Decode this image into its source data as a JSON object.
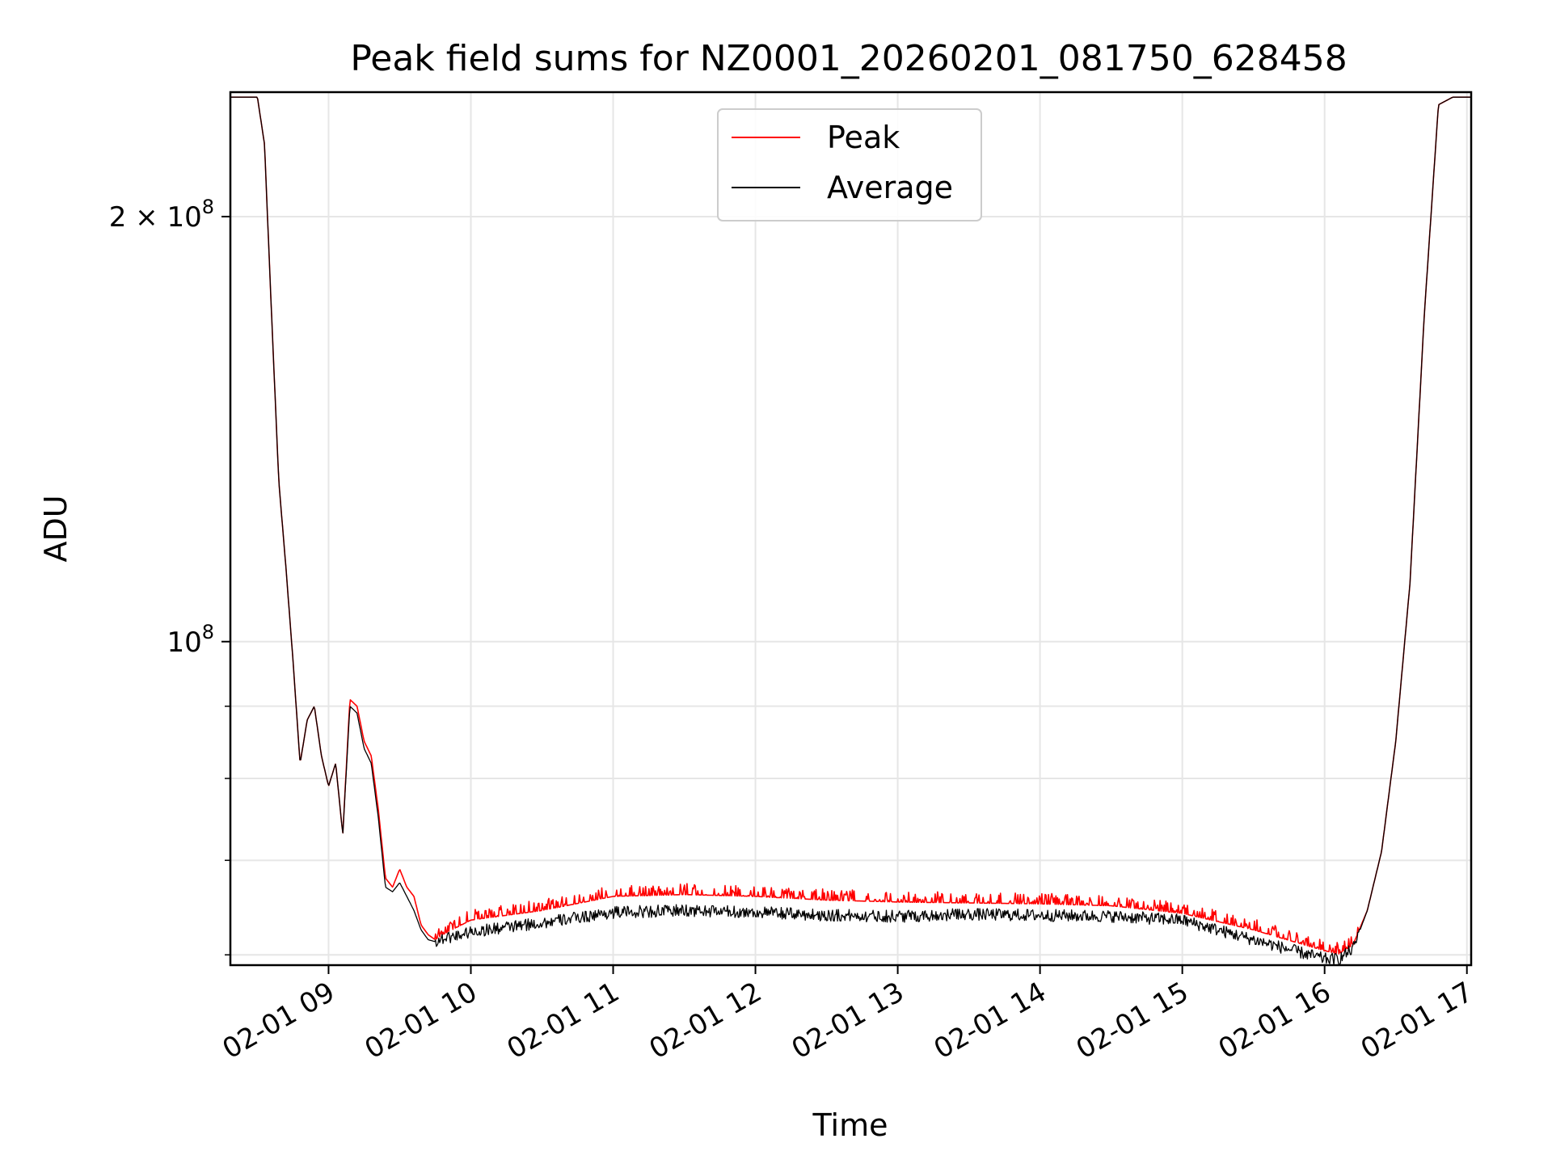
{
  "chart_data": {
    "type": "line",
    "title": "Peak field sums for NZ0001_20260201_081750_628458",
    "xlabel": "Time",
    "ylabel": "ADU",
    "yscale": "log",
    "ylim": [
      59000000,
      245000000
    ],
    "xlim": [
      8.31,
      17.03
    ],
    "grid": true,
    "legend_position": "upper-center",
    "x_ticks": [
      {
        "value": 9,
        "label": "02-01 09"
      },
      {
        "value": 10,
        "label": "02-01 10"
      },
      {
        "value": 11,
        "label": "02-01 11"
      },
      {
        "value": 12,
        "label": "02-01 12"
      },
      {
        "value": 13,
        "label": "02-01 13"
      },
      {
        "value": 14,
        "label": "02-01 14"
      },
      {
        "value": 15,
        "label": "02-01 15"
      },
      {
        "value": 16,
        "label": "02-01 16"
      },
      {
        "value": 17,
        "label": "02-01 17"
      }
    ],
    "y_major_ticks": [
      {
        "value": 100000000,
        "label_base": "10",
        "label_exp": "8",
        "label_prefix": ""
      },
      {
        "value": 200000000,
        "label_base": "10",
        "label_exp": "8",
        "label_prefix": "2 × "
      }
    ],
    "y_minor_ticks": [
      60000000,
      70000000,
      80000000,
      90000000
    ],
    "series": [
      {
        "name": "Peak",
        "color": "#ff0000",
        "noise": 0.045,
        "x": [
          8.31,
          8.5,
          8.55,
          8.6,
          8.65,
          8.7,
          8.75,
          8.8,
          8.85,
          8.9,
          8.95,
          9.0,
          9.05,
          9.1,
          9.15,
          9.2,
          9.25,
          9.3,
          9.35,
          9.4,
          9.45,
          9.5,
          9.55,
          9.6,
          9.65,
          9.7,
          9.75,
          9.8,
          10.0,
          10.5,
          11.0,
          11.5,
          12.0,
          12.5,
          13.0,
          13.5,
          14.0,
          14.5,
          15.0,
          15.5,
          16.0,
          16.1,
          16.2,
          16.3,
          16.4,
          16.5,
          16.6,
          16.7,
          16.8,
          16.9,
          17.03
        ],
        "values": [
          243000000,
          243000000,
          225000000,
          170000000,
          130000000,
          113000000,
          97000000,
          82000000,
          88000000,
          90000000,
          83000000,
          79000000,
          82000000,
          73000000,
          91000000,
          90000000,
          85000000,
          83000000,
          76000000,
          68000000,
          67000000,
          69000000,
          67000000,
          66000000,
          63000000,
          62000000,
          61500000,
          62000000,
          63500000,
          64500000,
          66000000,
          66200000,
          66000000,
          65600000,
          65400000,
          65300000,
          65200000,
          65000000,
          64200000,
          62500000,
          60400000,
          60100000,
          61000000,
          64500000,
          71000000,
          85000000,
          110000000,
          170000000,
          240000000,
          243000000,
          243000000
        ]
      },
      {
        "name": "Average",
        "color": "#000000",
        "noise": 0.01,
        "x": [
          8.31,
          8.5,
          8.55,
          8.6,
          8.65,
          8.7,
          8.75,
          8.8,
          8.85,
          8.9,
          8.95,
          9.0,
          9.05,
          9.1,
          9.15,
          9.2,
          9.25,
          9.3,
          9.35,
          9.4,
          9.45,
          9.5,
          9.55,
          9.6,
          9.65,
          9.7,
          9.75,
          9.8,
          10.0,
          10.5,
          11.0,
          11.5,
          12.0,
          12.5,
          13.0,
          13.5,
          14.0,
          14.5,
          15.0,
          15.5,
          16.0,
          16.1,
          16.2,
          16.3,
          16.4,
          16.5,
          16.6,
          16.7,
          16.8,
          16.9,
          17.03
        ],
        "values": [
          243000000,
          243000000,
          225000000,
          170000000,
          130000000,
          113000000,
          97000000,
          82000000,
          88000000,
          90000000,
          83000000,
          79000000,
          82000000,
          73000000,
          90000000,
          89000000,
          84000000,
          82000000,
          75000000,
          67000000,
          66500000,
          67500000,
          66000000,
          64500000,
          62500000,
          61500000,
          61300000,
          61600000,
          62300000,
          63200000,
          64300000,
          64500000,
          64300000,
          64000000,
          63900000,
          64100000,
          64000000,
          63900000,
          63500000,
          61500000,
          59600000,
          59600000,
          60600000,
          64500000,
          71000000,
          85000000,
          110000000,
          170000000,
          240000000,
          243000000,
          243000000
        ]
      }
    ]
  }
}
